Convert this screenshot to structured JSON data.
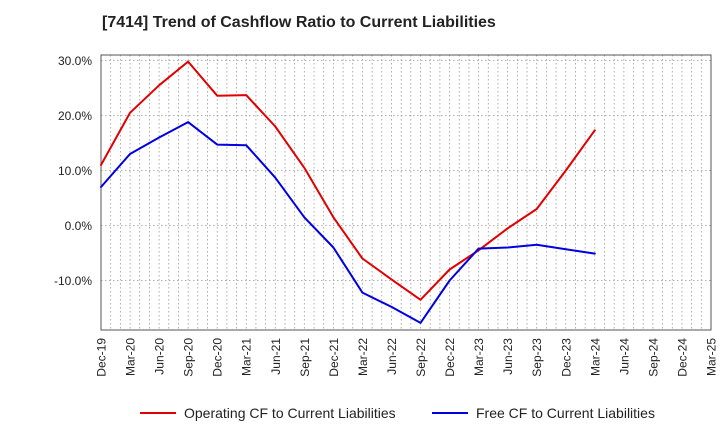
{
  "chart_data": {
    "type": "line",
    "title": "[7414]  Trend of Cashflow Ratio to Current Liabilities",
    "xlabel": "",
    "ylabel": "",
    "x_ticks": [
      "Dec-19",
      "Mar-20",
      "Jun-20",
      "Sep-20",
      "Dec-20",
      "Mar-21",
      "Jun-21",
      "Sep-21",
      "Dec-21",
      "Mar-22",
      "Jun-22",
      "Sep-22",
      "Dec-22",
      "Mar-23",
      "Jun-23",
      "Sep-23",
      "Dec-23",
      "Mar-24",
      "Jun-24",
      "Sep-24",
      "Dec-24",
      "Mar-25"
    ],
    "y_ticks": [
      "30.0%",
      "20.0%",
      "10.0%",
      "0.0%",
      "-10.0%"
    ],
    "ylim": [
      -19,
      31
    ],
    "grid": true,
    "legend_position": "bottom",
    "series": [
      {
        "name": "Operating CF to Current Liabilities",
        "color": "#e00000",
        "x": [
          "Dec-19",
          "Mar-20",
          "Jun-20",
          "Sep-20",
          "Dec-20",
          "Mar-21",
          "Jun-21",
          "Sep-21",
          "Dec-21",
          "Mar-22",
          "Jun-22",
          "Sep-22",
          "Dec-22",
          "Mar-23",
          "Jun-23",
          "Sep-23",
          "Dec-23",
          "Mar-24"
        ],
        "values": [
          11.0,
          20.5,
          25.5,
          29.8,
          23.6,
          23.7,
          18.0,
          10.5,
          1.5,
          -6.0,
          -9.8,
          -13.5,
          -8.0,
          -4.5,
          -0.5,
          3.0,
          10.0,
          17.3
        ]
      },
      {
        "name": "Free CF to Current Liabilities",
        "color": "#0000e0",
        "x": [
          "Dec-19",
          "Mar-20",
          "Jun-20",
          "Sep-20",
          "Dec-20",
          "Mar-21",
          "Jun-21",
          "Sep-21",
          "Dec-21",
          "Mar-22",
          "Jun-22",
          "Sep-22",
          "Dec-22",
          "Mar-23",
          "Jun-23",
          "Sep-23",
          "Dec-23",
          "Mar-24"
        ],
        "values": [
          7.0,
          13.0,
          16.0,
          18.8,
          14.7,
          14.6,
          8.7,
          1.5,
          -4.0,
          -12.2,
          -14.8,
          -17.7,
          -10.0,
          -4.2,
          -4.0,
          -3.5,
          -4.3,
          -5.1
        ]
      }
    ]
  }
}
